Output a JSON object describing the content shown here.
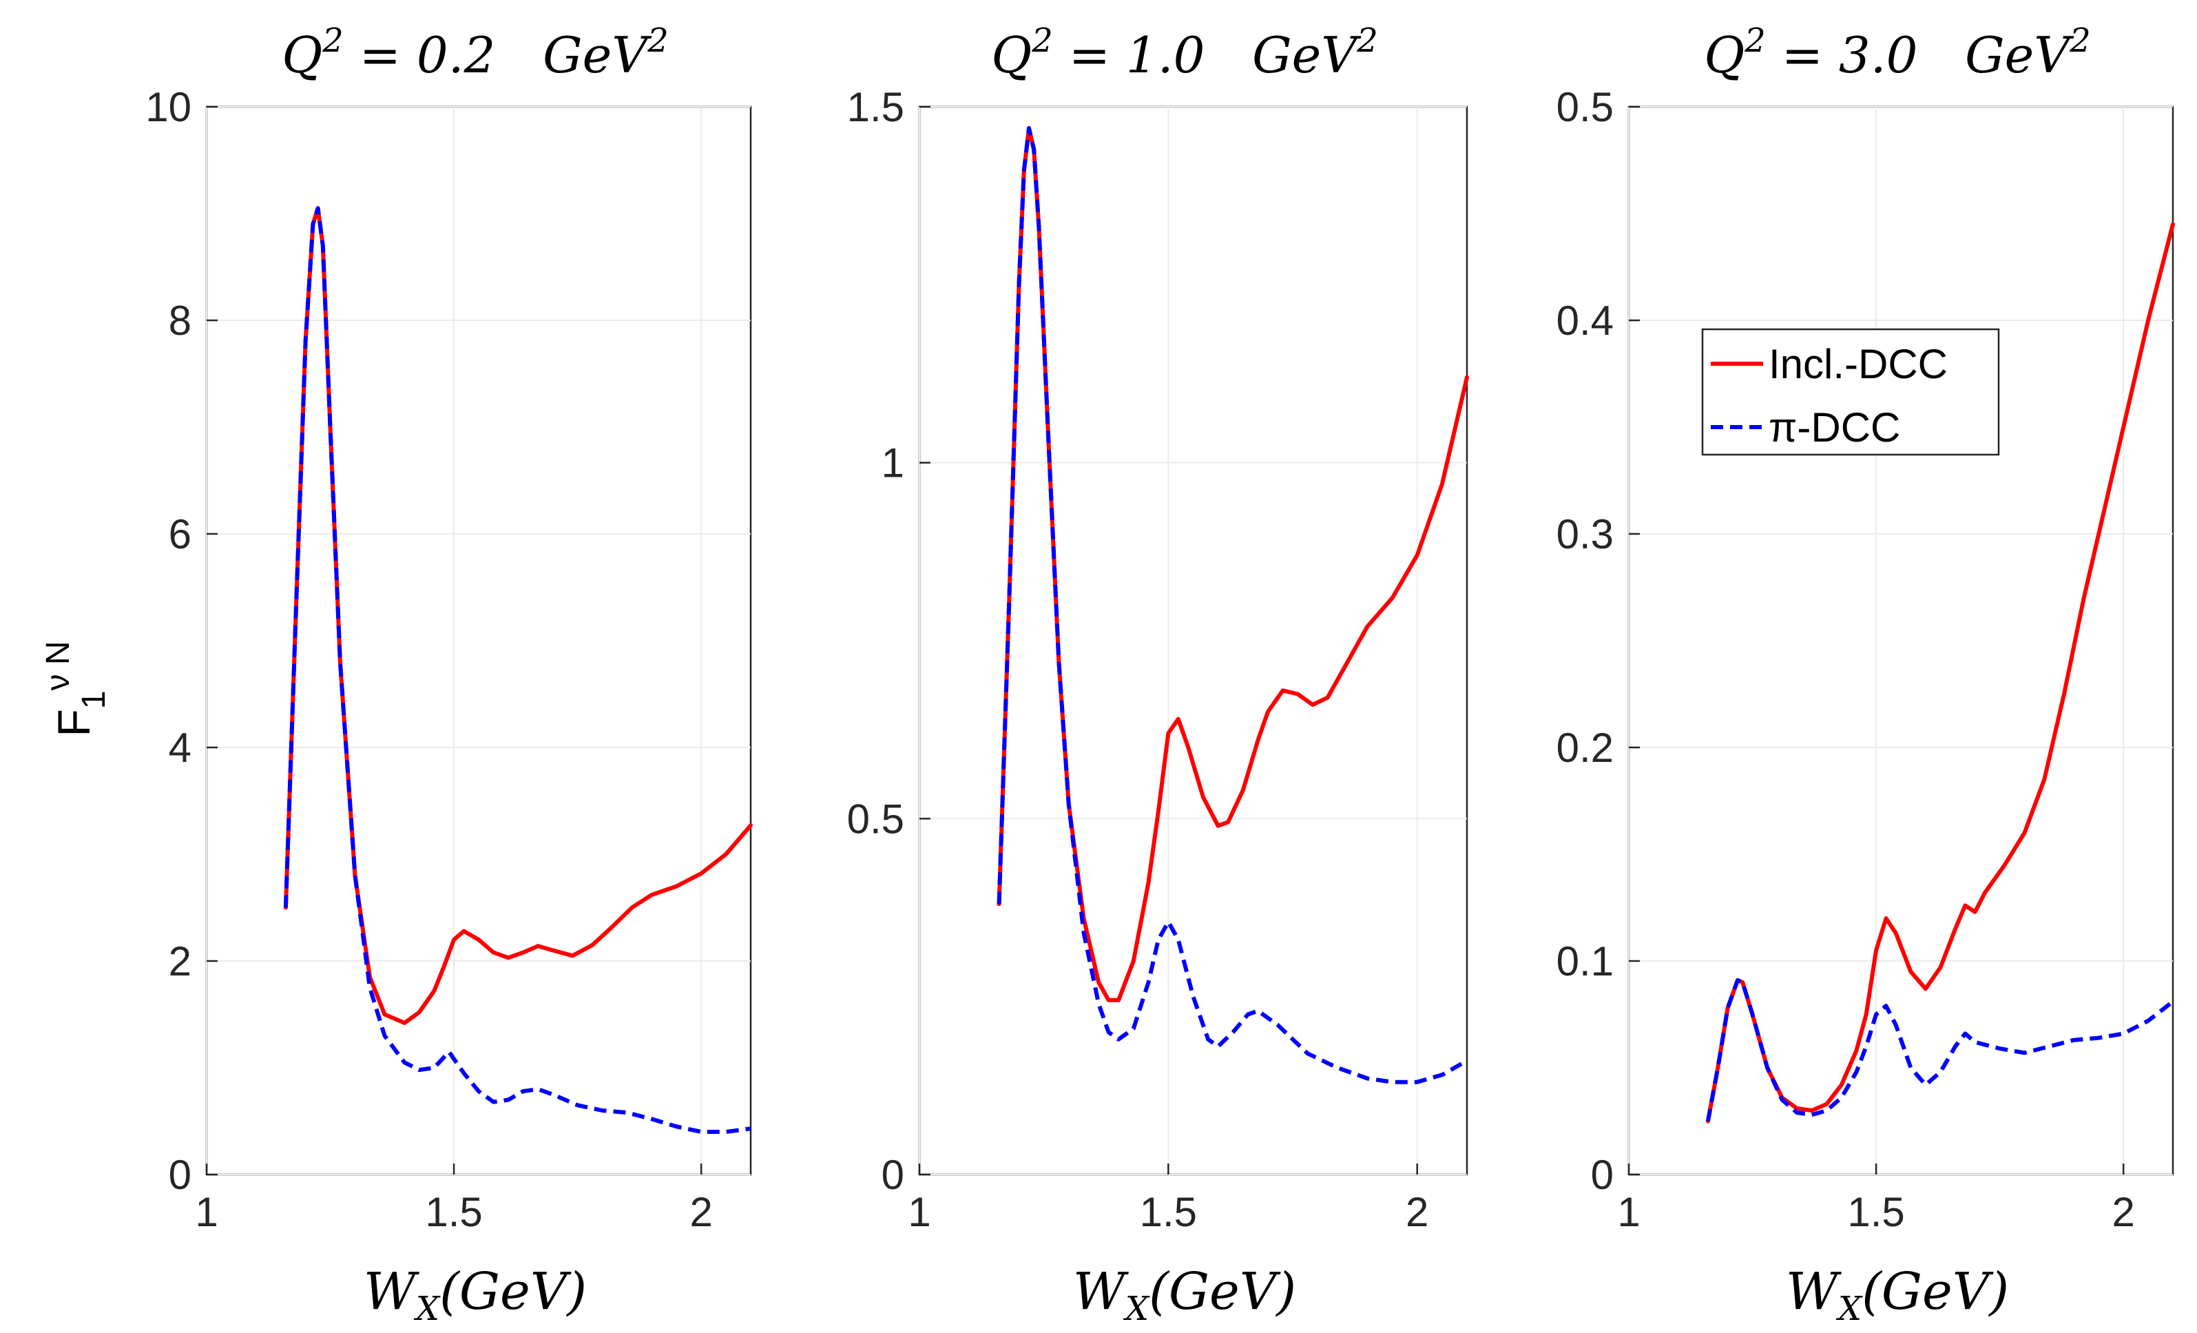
{
  "chart_data": [
    {
      "type": "line",
      "title": "Q² = 0.2   GeV²",
      "title_parts": {
        "var": "Q",
        "sup": "2",
        "rest": " = 0.2   GeV",
        "unit_sup": "2"
      },
      "xlabel": "W_X(GeV)",
      "xlabel_parts": {
        "main": "W",
        "sub": "X",
        "rest": "(GeV)"
      },
      "ylabel": "F₁^{νN}",
      "ylabel_parts": {
        "main": "F",
        "sub": "1",
        "sup": "ν N"
      },
      "xlim": [
        1,
        2.1
      ],
      "ylim": [
        0,
        10
      ],
      "xticks": [
        1,
        1.5,
        2
      ],
      "xtick_labels": [
        "1",
        "1.5",
        "2"
      ],
      "yticks": [
        0,
        2,
        4,
        6,
        8,
        10
      ],
      "ytick_labels": [
        "0",
        "2",
        "4",
        "6",
        "8",
        "10"
      ],
      "grid": true,
      "series": [
        {
          "name": "Incl.-DCC",
          "color": "#ff0000",
          "dash": "solid",
          "x": [
            1.16,
            1.18,
            1.2,
            1.215,
            1.225,
            1.235,
            1.25,
            1.27,
            1.3,
            1.33,
            1.36,
            1.4,
            1.43,
            1.46,
            1.48,
            1.5,
            1.52,
            1.55,
            1.58,
            1.61,
            1.64,
            1.67,
            1.7,
            1.74,
            1.78,
            1.82,
            1.86,
            1.9,
            1.95,
            2.0,
            2.05,
            2.1
          ],
          "values": [
            2.5,
            5.2,
            7.8,
            8.9,
            9.05,
            8.7,
            7.0,
            4.8,
            2.8,
            1.85,
            1.5,
            1.42,
            1.52,
            1.72,
            1.95,
            2.2,
            2.28,
            2.2,
            2.08,
            2.03,
            2.08,
            2.14,
            2.1,
            2.05,
            2.15,
            2.32,
            2.5,
            2.62,
            2.7,
            2.82,
            3.0,
            3.27
          ]
        },
        {
          "name": "π-DCC",
          "color": "#0000ff",
          "dash": "dashed",
          "x": [
            1.16,
            1.18,
            1.2,
            1.215,
            1.225,
            1.235,
            1.25,
            1.27,
            1.3,
            1.33,
            1.36,
            1.4,
            1.43,
            1.46,
            1.49,
            1.52,
            1.55,
            1.58,
            1.61,
            1.64,
            1.67,
            1.7,
            1.75,
            1.8,
            1.85,
            1.9,
            1.95,
            2.0,
            2.05,
            2.1
          ],
          "values": [
            2.5,
            5.2,
            7.8,
            8.9,
            9.05,
            8.7,
            7.0,
            4.8,
            2.8,
            1.75,
            1.3,
            1.05,
            0.98,
            1.0,
            1.15,
            0.95,
            0.78,
            0.68,
            0.7,
            0.78,
            0.8,
            0.75,
            0.65,
            0.6,
            0.58,
            0.52,
            0.45,
            0.4,
            0.4,
            0.43
          ]
        }
      ]
    },
    {
      "type": "line",
      "title": "Q² = 1.0   GeV²",
      "title_parts": {
        "var": "Q",
        "sup": "2",
        "rest": " = 1.0   GeV",
        "unit_sup": "2"
      },
      "xlabel": "W_X(GeV)",
      "xlabel_parts": {
        "main": "W",
        "sub": "X",
        "rest": "(GeV)"
      },
      "xlim": [
        1,
        2.1
      ],
      "ylim": [
        0,
        1.5
      ],
      "xticks": [
        1,
        1.5,
        2
      ],
      "xtick_labels": [
        "1",
        "1.5",
        "2"
      ],
      "yticks": [
        0,
        0.5,
        1,
        1.5
      ],
      "ytick_labels": [
        "0",
        "0.5",
        "1",
        "1.5"
      ],
      "grid": true,
      "series": [
        {
          "name": "Incl.-DCC",
          "color": "#ff0000",
          "dash": "solid",
          "x": [
            1.16,
            1.18,
            1.2,
            1.21,
            1.22,
            1.23,
            1.24,
            1.26,
            1.28,
            1.3,
            1.33,
            1.36,
            1.38,
            1.4,
            1.43,
            1.46,
            1.48,
            1.5,
            1.52,
            1.54,
            1.57,
            1.6,
            1.62,
            1.65,
            1.68,
            1.7,
            1.73,
            1.76,
            1.79,
            1.82,
            1.86,
            1.9,
            1.95,
            2.0,
            2.05,
            2.1
          ],
          "values": [
            0.38,
            0.8,
            1.25,
            1.41,
            1.47,
            1.44,
            1.33,
            1.02,
            0.72,
            0.52,
            0.36,
            0.27,
            0.245,
            0.245,
            0.3,
            0.41,
            0.51,
            0.62,
            0.64,
            0.6,
            0.53,
            0.49,
            0.495,
            0.54,
            0.61,
            0.65,
            0.68,
            0.675,
            0.66,
            0.67,
            0.72,
            0.77,
            0.81,
            0.87,
            0.97,
            1.12
          ]
        },
        {
          "name": "π-DCC",
          "color": "#0000ff",
          "dash": "dashed",
          "x": [
            1.16,
            1.18,
            1.2,
            1.21,
            1.22,
            1.23,
            1.24,
            1.26,
            1.28,
            1.3,
            1.33,
            1.36,
            1.38,
            1.4,
            1.43,
            1.46,
            1.48,
            1.5,
            1.52,
            1.55,
            1.58,
            1.6,
            1.63,
            1.66,
            1.68,
            1.72,
            1.78,
            1.84,
            1.9,
            1.95,
            2.0,
            2.05,
            2.1
          ],
          "values": [
            0.38,
            0.8,
            1.25,
            1.41,
            1.47,
            1.44,
            1.33,
            1.02,
            0.72,
            0.52,
            0.34,
            0.24,
            0.2,
            0.19,
            0.205,
            0.27,
            0.33,
            0.355,
            0.33,
            0.25,
            0.19,
            0.18,
            0.2,
            0.225,
            0.23,
            0.21,
            0.17,
            0.15,
            0.135,
            0.13,
            0.13,
            0.14,
            0.16
          ]
        }
      ]
    },
    {
      "type": "line",
      "title": "Q² = 3.0   GeV²",
      "title_parts": {
        "var": "Q",
        "sup": "2",
        "rest": " = 3.0   GeV",
        "unit_sup": "2"
      },
      "xlabel": "W_X(GeV)",
      "xlabel_parts": {
        "main": "W",
        "sub": "X",
        "rest": "(GeV)"
      },
      "xlim": [
        1,
        2.1
      ],
      "ylim": [
        0,
        0.5
      ],
      "xticks": [
        1,
        1.5,
        2
      ],
      "xtick_labels": [
        "1",
        "1.5",
        "2"
      ],
      "yticks": [
        0,
        0.1,
        0.2,
        0.3,
        0.4,
        0.5
      ],
      "ytick_labels": [
        "0",
        "0.1",
        "0.2",
        "0.3",
        "0.4",
        "0.5"
      ],
      "grid": true,
      "legend": {
        "placement": "upper-left",
        "entries": [
          "Incl.-DCC",
          "π-DCC"
        ]
      },
      "series": [
        {
          "name": "Incl.-DCC",
          "color": "#ff0000",
          "dash": "solid",
          "x": [
            1.16,
            1.18,
            1.2,
            1.22,
            1.23,
            1.25,
            1.28,
            1.31,
            1.34,
            1.37,
            1.4,
            1.43,
            1.46,
            1.48,
            1.5,
            1.52,
            1.54,
            1.57,
            1.6,
            1.63,
            1.66,
            1.68,
            1.7,
            1.72,
            1.76,
            1.8,
            1.84,
            1.88,
            1.92,
            1.96,
            2.0,
            2.05,
            2.1
          ],
          "values": [
            0.025,
            0.05,
            0.078,
            0.091,
            0.09,
            0.075,
            0.05,
            0.036,
            0.031,
            0.03,
            0.033,
            0.042,
            0.058,
            0.075,
            0.105,
            0.12,
            0.113,
            0.095,
            0.087,
            0.097,
            0.115,
            0.126,
            0.123,
            0.132,
            0.145,
            0.16,
            0.185,
            0.225,
            0.27,
            0.31,
            0.35,
            0.4,
            0.445
          ]
        },
        {
          "name": "π-DCC",
          "color": "#0000ff",
          "dash": "dashed",
          "x": [
            1.16,
            1.18,
            1.2,
            1.22,
            1.23,
            1.25,
            1.28,
            1.31,
            1.34,
            1.37,
            1.4,
            1.43,
            1.46,
            1.48,
            1.5,
            1.52,
            1.54,
            1.57,
            1.6,
            1.63,
            1.66,
            1.68,
            1.7,
            1.75,
            1.8,
            1.85,
            1.9,
            1.95,
            2.0,
            2.05,
            2.1
          ],
          "values": [
            0.025,
            0.05,
            0.078,
            0.091,
            0.09,
            0.075,
            0.05,
            0.035,
            0.029,
            0.028,
            0.03,
            0.036,
            0.048,
            0.06,
            0.075,
            0.079,
            0.07,
            0.05,
            0.042,
            0.048,
            0.06,
            0.066,
            0.062,
            0.059,
            0.057,
            0.06,
            0.063,
            0.064,
            0.066,
            0.072,
            0.081
          ]
        }
      ]
    }
  ]
}
